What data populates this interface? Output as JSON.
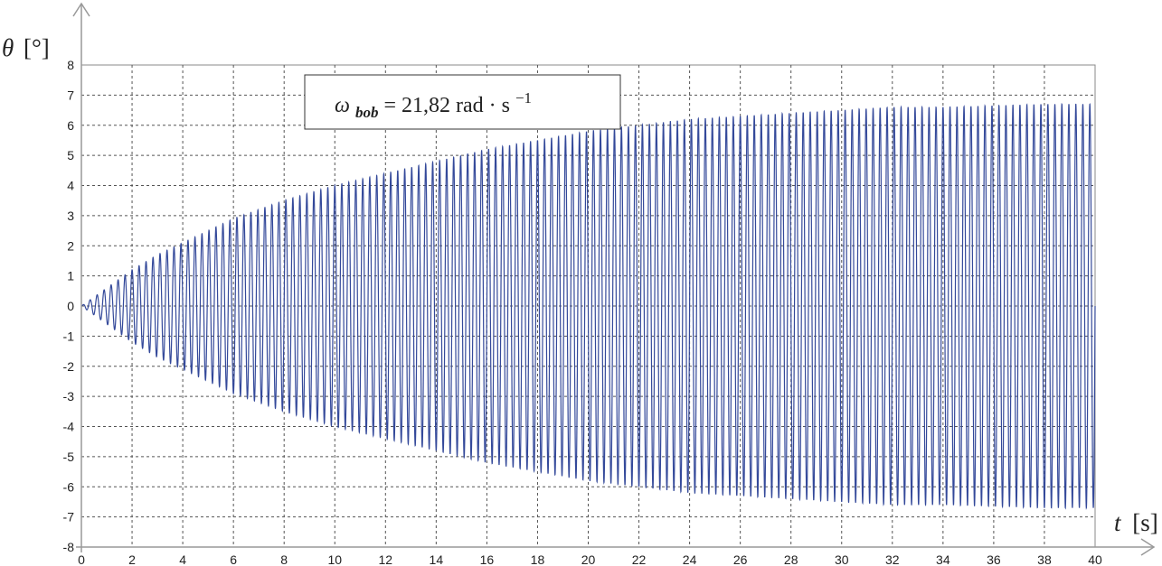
{
  "chart_data": {
    "type": "line",
    "title": "",
    "xlabel": {
      "var": "t",
      "unit": "[s]"
    },
    "ylabel": {
      "var": "θ",
      "unit": "[°]"
    },
    "xlim": [
      0,
      40
    ],
    "ylim": [
      -8,
      8
    ],
    "xticks": [
      0,
      2,
      4,
      6,
      8,
      10,
      12,
      14,
      16,
      18,
      20,
      22,
      24,
      26,
      28,
      30,
      32,
      34,
      36,
      38,
      40
    ],
    "yticks": [
      8,
      7,
      6,
      5,
      4,
      3,
      2,
      1,
      0,
      -1,
      -2,
      -3,
      -4,
      -5,
      -6,
      -7,
      -8
    ],
    "grid": true,
    "grid_style": "dashed",
    "annotation": {
      "symbol": "ω",
      "subscript": "bob",
      "text": " = 21,82 rad · s",
      "superscript": "−1"
    },
    "series": [
      {
        "color": "#34499a",
        "description_values": "oscillation with amplitude envelope (degrees) at times (s)",
        "envelope_t": [
          0,
          1,
          2,
          3,
          4,
          5,
          6,
          8,
          10,
          12,
          14,
          16,
          18,
          20,
          22,
          24,
          26,
          28,
          30,
          32,
          34,
          36,
          38,
          40
        ],
        "envelope_amp": [
          0,
          0.6,
          1.2,
          1.7,
          2.1,
          2.5,
          2.9,
          3.5,
          4.0,
          4.4,
          4.8,
          5.2,
          5.5,
          5.8,
          6.0,
          6.2,
          6.3,
          6.4,
          6.5,
          6.6,
          6.6,
          6.65,
          6.7,
          6.7
        ],
        "cycles_in_range": 145
      }
    ]
  }
}
